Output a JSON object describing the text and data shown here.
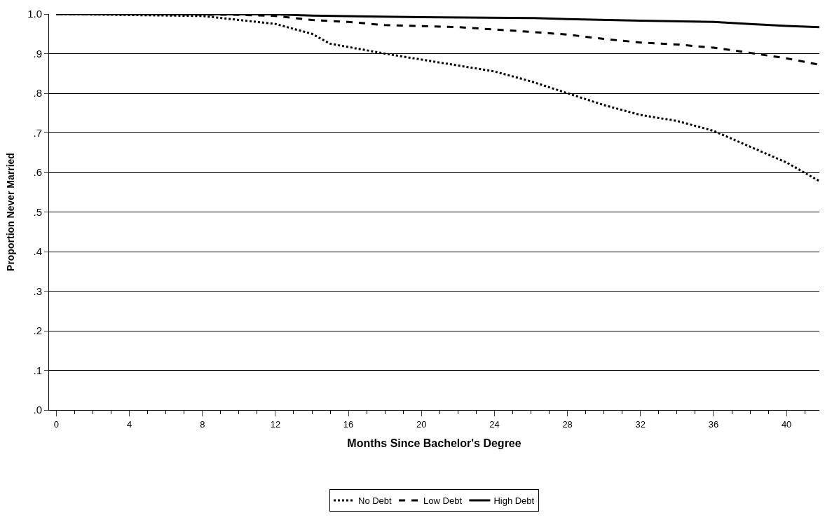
{
  "chart_data": {
    "type": "line",
    "xlabel": "Months Since Bachelor's Degree",
    "ylabel": "Proportion Never Married",
    "xlim": [
      -0.4,
      41.8
    ],
    "xticks": [
      0,
      4,
      8,
      12,
      16,
      20,
      24,
      28,
      32,
      36,
      40
    ],
    "ylim": [
      0,
      1
    ],
    "yticks": [
      {
        "value": 0,
        "label": ".0"
      },
      {
        "value": 0.1,
        "label": ".1"
      },
      {
        "value": 0.2,
        "label": ".2"
      },
      {
        "value": 0.3,
        "label": ".3"
      },
      {
        "value": 0.4,
        "label": ".4"
      },
      {
        "value": 0.5,
        "label": ".5"
      },
      {
        "value": 0.6,
        "label": ".6"
      },
      {
        "value": 0.7,
        "label": ".7"
      },
      {
        "value": 0.8,
        "label": ".8"
      },
      {
        "value": 0.9,
        "label": ".9"
      },
      {
        "value": 1,
        "label": "1.0"
      }
    ],
    "grid": "y",
    "legend": "bottom",
    "marker": "none",
    "series": [
      {
        "name": "No Debt",
        "color": "#000000",
        "line_style": "dotted",
        "x": [
          0,
          8,
          10,
          12,
          14,
          15,
          18,
          20,
          22,
          24,
          26,
          28,
          30,
          32,
          34,
          36,
          38,
          40,
          41.8
        ],
        "values": [
          1.0,
          0.995,
          0.985,
          0.975,
          0.95,
          0.925,
          0.9,
          0.885,
          0.87,
          0.855,
          0.83,
          0.8,
          0.77,
          0.745,
          0.73,
          0.705,
          0.665,
          0.625,
          0.578
        ]
      },
      {
        "name": "Low Debt",
        "color": "#000000",
        "line_style": "dashed",
        "x": [
          0,
          10,
          12,
          14,
          16,
          18,
          22,
          26,
          28,
          30,
          32,
          34,
          36,
          38,
          40,
          41.8
        ],
        "values": [
          1.0,
          0.998,
          0.995,
          0.985,
          0.98,
          0.972,
          0.967,
          0.955,
          0.948,
          0.937,
          0.928,
          0.923,
          0.915,
          0.902,
          0.888,
          0.872
        ]
      },
      {
        "name": "High Debt",
        "color": "#000000",
        "line_style": "solid",
        "x": [
          0,
          12,
          14,
          20,
          26,
          28,
          32,
          36,
          38,
          40,
          41.8
        ],
        "values": [
          1.0,
          0.999,
          0.996,
          0.992,
          0.99,
          0.987,
          0.983,
          0.98,
          0.975,
          0.97,
          0.967
        ]
      }
    ]
  }
}
